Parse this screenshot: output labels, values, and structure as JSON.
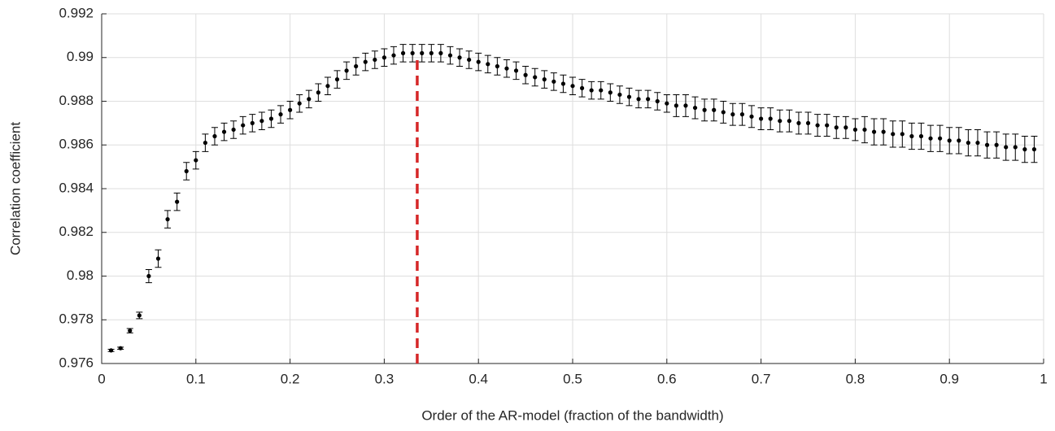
{
  "chart_data": {
    "type": "errorbar",
    "xlabel": "Order of the AR-model (fraction of the bandwidth)",
    "ylabel": "Correlation coefficient",
    "x": [
      0.01,
      0.02,
      0.03,
      0.04,
      0.05,
      0.06,
      0.07,
      0.08,
      0.09,
      0.1,
      0.11,
      0.12,
      0.13,
      0.14,
      0.15,
      0.16,
      0.17,
      0.18,
      0.19,
      0.2,
      0.21,
      0.22,
      0.23,
      0.24,
      0.25,
      0.26,
      0.27,
      0.28,
      0.29,
      0.3,
      0.31,
      0.32,
      0.33,
      0.34,
      0.35,
      0.36,
      0.37,
      0.38,
      0.39,
      0.4,
      0.41,
      0.42,
      0.43,
      0.44,
      0.45,
      0.46,
      0.47,
      0.48,
      0.49,
      0.5,
      0.51,
      0.52,
      0.53,
      0.54,
      0.55,
      0.56,
      0.57,
      0.58,
      0.59,
      0.6,
      0.61,
      0.62,
      0.63,
      0.64,
      0.65,
      0.66,
      0.67,
      0.68,
      0.69,
      0.7,
      0.71,
      0.72,
      0.73,
      0.74,
      0.75,
      0.76,
      0.77,
      0.78,
      0.79,
      0.8,
      0.81,
      0.82,
      0.83,
      0.84,
      0.85,
      0.86,
      0.87,
      0.88,
      0.89,
      0.9,
      0.91,
      0.92,
      0.93,
      0.94,
      0.95,
      0.96,
      0.97,
      0.98,
      0.99
    ],
    "values": [
      0.9766,
      0.9767,
      0.9775,
      0.9782,
      0.98,
      0.9808,
      0.9826,
      0.9834,
      0.9848,
      0.9853,
      0.9861,
      0.9864,
      0.9866,
      0.9867,
      0.9869,
      0.987,
      0.9871,
      0.9872,
      0.9874,
      0.9876,
      0.9879,
      0.9881,
      0.9884,
      0.9887,
      0.989,
      0.9894,
      0.9896,
      0.9898,
      0.9899,
      0.99,
      0.9901,
      0.9902,
      0.9902,
      0.9902,
      0.9902,
      0.9902,
      0.9901,
      0.99,
      0.9899,
      0.9898,
      0.9897,
      0.9896,
      0.9895,
      0.9894,
      0.9892,
      0.9891,
      0.989,
      0.9889,
      0.9888,
      0.9887,
      0.9886,
      0.9885,
      0.9885,
      0.9884,
      0.9883,
      0.9882,
      0.9881,
      0.9881,
      0.988,
      0.9879,
      0.9878,
      0.9878,
      0.9877,
      0.9876,
      0.9876,
      0.9875,
      0.9874,
      0.9874,
      0.9873,
      0.9872,
      0.9872,
      0.9871,
      0.9871,
      0.987,
      0.987,
      0.9869,
      0.9869,
      0.9868,
      0.9868,
      0.9867,
      0.9867,
      0.9866,
      0.9866,
      0.9865,
      0.9865,
      0.9864,
      0.9864,
      0.9863,
      0.9863,
      0.9862,
      0.9862,
      0.9861,
      0.9861,
      0.986,
      0.986,
      0.9859,
      0.9859,
      0.9858,
      0.9858
    ],
    "errors": [
      5e-05,
      5e-05,
      0.0001,
      0.00015,
      0.0003,
      0.0004,
      0.0004,
      0.0004,
      0.0004,
      0.0004,
      0.0004,
      0.0004,
      0.0004,
      0.0004,
      0.0004,
      0.0004,
      0.0004,
      0.0004,
      0.0004,
      0.0004,
      0.0004,
      0.0004,
      0.0004,
      0.0004,
      0.0004,
      0.0004,
      0.0004,
      0.0004,
      0.0004,
      0.0004,
      0.0004,
      0.0004,
      0.0004,
      0.0004,
      0.0004,
      0.0004,
      0.0004,
      0.0004,
      0.0004,
      0.0004,
      0.0004,
      0.0004,
      0.0004,
      0.0004,
      0.0004,
      0.0004,
      0.0004,
      0.0004,
      0.0004,
      0.0004,
      0.0004,
      0.0004,
      0.0004,
      0.0004,
      0.0004,
      0.0004,
      0.0004,
      0.0004,
      0.0004,
      0.0004,
      0.0005,
      0.0005,
      0.0005,
      0.0005,
      0.0005,
      0.0005,
      0.0005,
      0.0005,
      0.0005,
      0.0005,
      0.0005,
      0.0005,
      0.0005,
      0.0005,
      0.0005,
      0.0005,
      0.0005,
      0.0005,
      0.0005,
      0.0005,
      0.0006,
      0.0006,
      0.0006,
      0.0006,
      0.0006,
      0.0006,
      0.0006,
      0.0006,
      0.0006,
      0.0006,
      0.0006,
      0.0006,
      0.0006,
      0.0006,
      0.0006,
      0.0006,
      0.0006,
      0.0006,
      0.0006
    ],
    "color": "#000000",
    "vline": {
      "x": 0.335,
      "y": [
        0.976,
        0.99
      ],
      "color": "#d62728"
    },
    "xlim": [
      0,
      1
    ],
    "xticks": [
      0,
      0.1,
      0.2,
      0.3,
      0.4,
      0.5,
      0.6,
      0.7,
      0.8,
      0.9,
      1
    ],
    "ylim": [
      0.976,
      0.992
    ],
    "yticks": [
      0.976,
      0.978,
      0.98,
      0.982,
      0.984,
      0.986,
      0.988,
      0.99,
      0.992
    ],
    "grid": true
  }
}
